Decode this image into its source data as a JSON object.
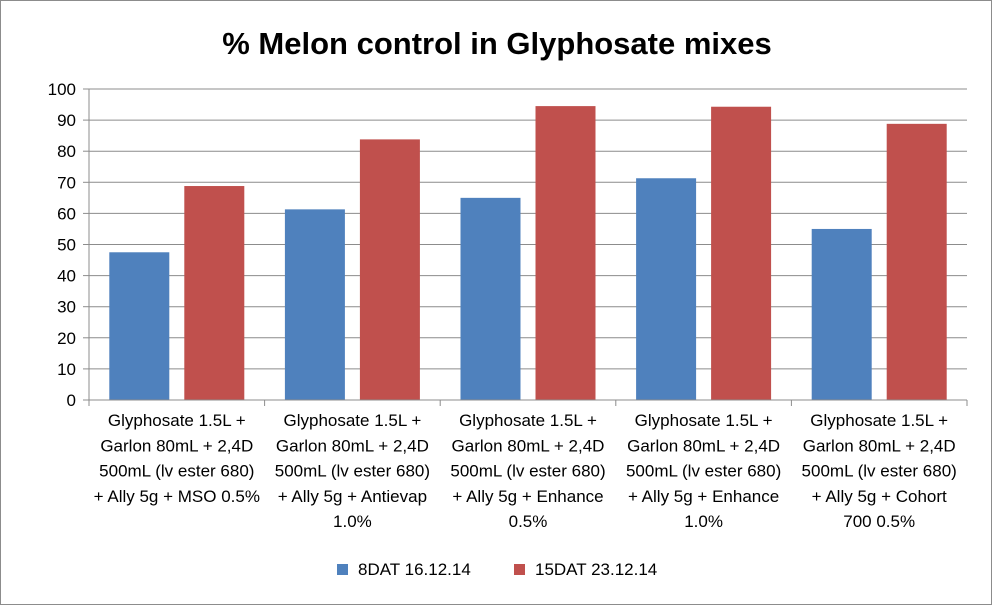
{
  "chart_data": {
    "type": "bar",
    "title": "% Melon control in Glyphosate mixes",
    "xlabel": "",
    "ylabel": "",
    "ylim": [
      0,
      100
    ],
    "yticks": [
      0,
      10,
      20,
      30,
      40,
      50,
      60,
      70,
      80,
      90,
      100
    ],
    "grid": true,
    "legend_position": "bottom",
    "categories": [
      [
        "Glyphosate 1.5L +",
        "Garlon 80mL + 2,4D",
        "500mL (lv ester 680)",
        "+ Ally 5g + MSO 0.5%"
      ],
      [
        "Glyphosate 1.5L +",
        "Garlon 80mL + 2,4D",
        "500mL (lv ester 680)",
        "+ Ally 5g + Antievap",
        "1.0%"
      ],
      [
        "Glyphosate 1.5L +",
        "Garlon 80mL + 2,4D",
        "500mL (lv ester 680)",
        "+ Ally 5g + Enhance",
        "0.5%"
      ],
      [
        "Glyphosate 1.5L +",
        "Garlon 80mL + 2,4D",
        "500mL (lv ester 680)",
        "+ Ally 5g + Enhance",
        "1.0%"
      ],
      [
        "Glyphosate 1.5L +",
        "Garlon 80mL + 2,4D",
        "500mL (lv ester 680)",
        "+ Ally 5g + Cohort",
        "700 0.5%"
      ]
    ],
    "series": [
      {
        "name": "8DAT 16.12.14",
        "color": "#4f81bd",
        "values": [
          47.5,
          61.3,
          65,
          71.3,
          55
        ]
      },
      {
        "name": "15DAT 23.12.14",
        "color": "#c0504d",
        "values": [
          68.8,
          83.8,
          94.5,
          94.3,
          88.8
        ]
      }
    ]
  }
}
